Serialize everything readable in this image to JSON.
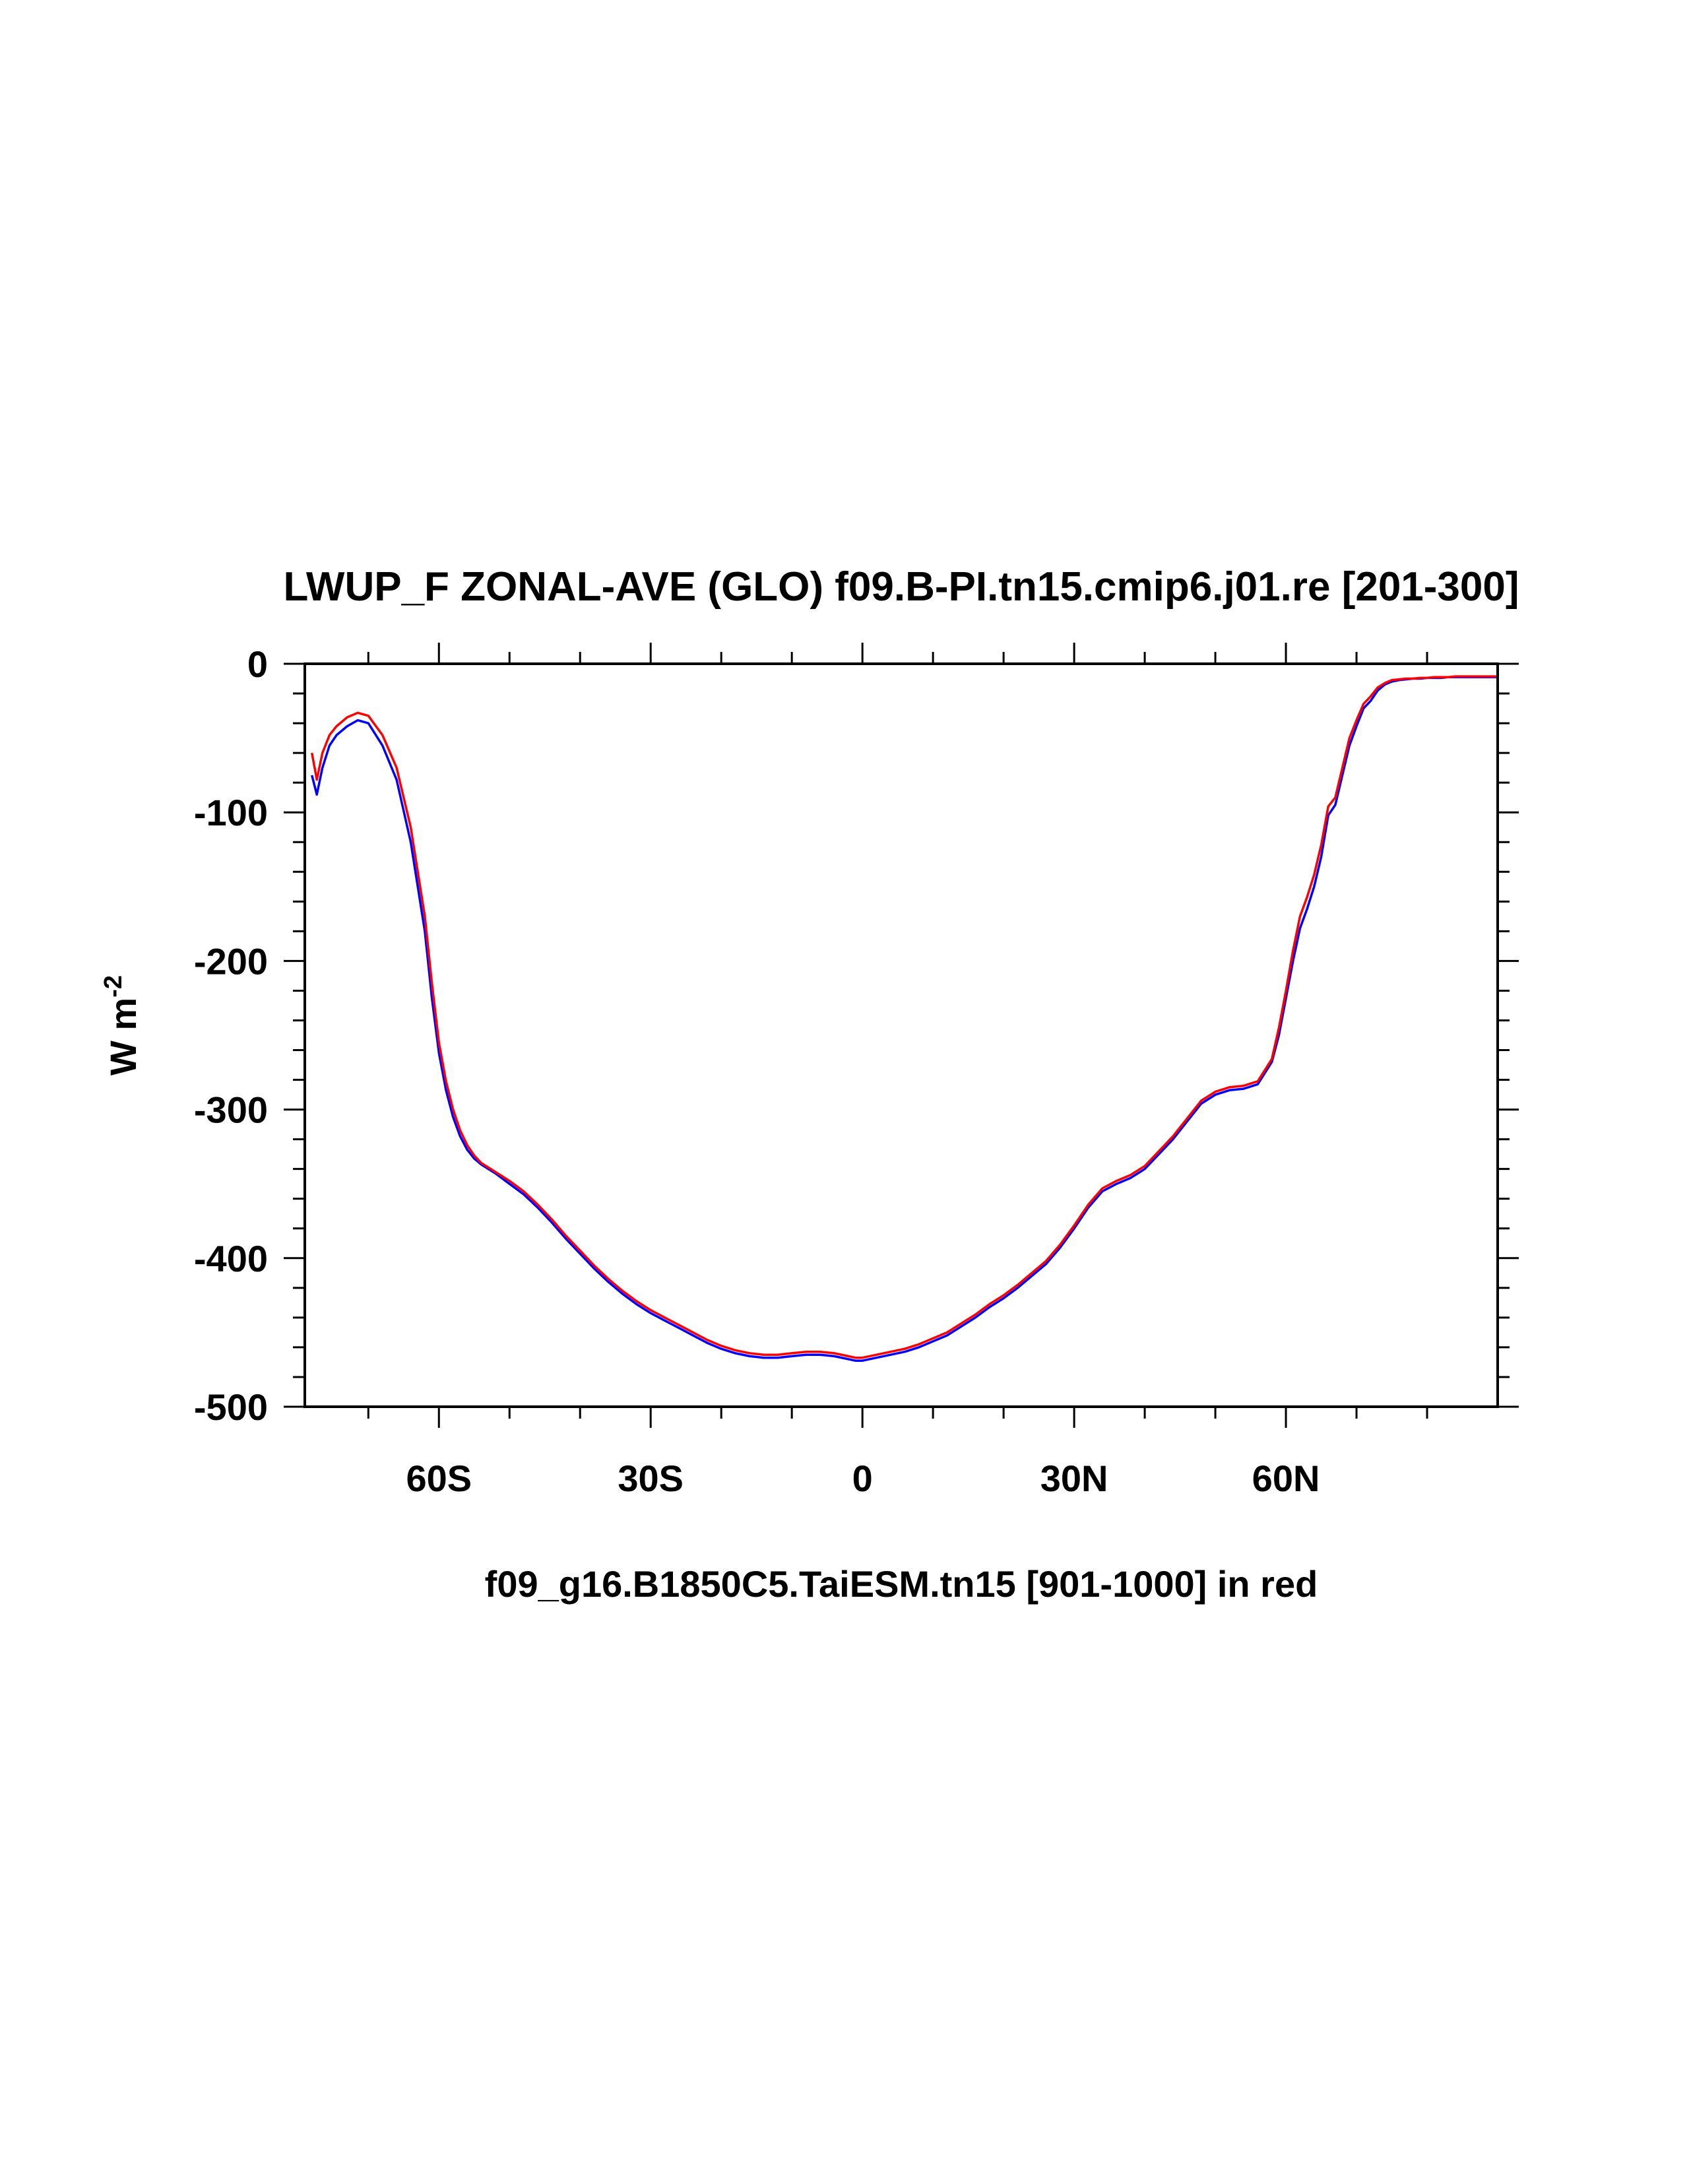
{
  "chart_data": {
    "type": "line",
    "title": "LWUP_F ZONAL-AVE (GLO) f09.B-PI.tn15.cmip6.j01.re [201-300]",
    "xlabel": "f09_g16.B1850C5.TaiESM.tn15 [901-1000] in red",
    "ylabel_base": "W m",
    "ylabel_sup": "-2",
    "xlim": [
      -79,
      90
    ],
    "ylim": [
      -500,
      0
    ],
    "xticks": [
      {
        "value": -60,
        "label": "60S"
      },
      {
        "value": -30,
        "label": "30S"
      },
      {
        "value": 0,
        "label": "0"
      },
      {
        "value": 30,
        "label": "30N"
      },
      {
        "value": 60,
        "label": "60N"
      }
    ],
    "yticks": [
      {
        "value": 0,
        "label": "0"
      },
      {
        "value": -100,
        "label": "-100"
      },
      {
        "value": -200,
        "label": "-200"
      },
      {
        "value": -300,
        "label": "-300"
      },
      {
        "value": -400,
        "label": "-400"
      },
      {
        "value": -500,
        "label": "-500"
      }
    ],
    "grid": false,
    "series": [
      {
        "color": "#0000ff",
        "x": [
          -78,
          -77.3,
          -76.5,
          -75.5,
          -74.5,
          -73,
          -71.5,
          -70,
          -68,
          -66,
          -64,
          -62,
          -61,
          -60,
          -59,
          -58,
          -57,
          -56,
          -55,
          -54,
          -53,
          -52,
          -50,
          -48,
          -46,
          -44,
          -42,
          -40,
          -38,
          -36,
          -34,
          -32,
          -30,
          -28,
          -26,
          -24,
          -22,
          -20,
          -18,
          -16,
          -14,
          -12,
          -10,
          -8,
          -6,
          -4,
          -2,
          -1,
          0,
          1,
          2,
          4,
          6,
          8,
          10,
          12,
          14,
          16,
          18,
          20,
          22,
          24,
          26,
          28,
          30,
          32,
          34,
          36,
          38,
          40,
          42,
          44,
          46,
          48,
          50,
          52,
          54,
          56,
          58,
          59,
          60,
          61,
          62,
          63,
          64,
          65,
          66,
          67,
          68,
          69,
          70,
          71,
          72,
          73,
          74,
          75,
          76,
          77,
          78,
          79,
          80,
          81,
          82,
          83,
          84,
          85,
          86,
          87,
          88,
          89,
          89.8
        ],
        "y": [
          -75,
          -88,
          -70,
          -55,
          -48,
          -42,
          -38,
          -40,
          -55,
          -78,
          -120,
          -180,
          -225,
          -262,
          -287,
          -305,
          -318,
          -327,
          -333,
          -337,
          -340,
          -343,
          -350,
          -357,
          -366,
          -376,
          -387,
          -397,
          -407,
          -416,
          -424,
          -431,
          -437,
          -442,
          -447,
          -452,
          -457,
          -461,
          -464,
          -466,
          -467,
          -467,
          -466,
          -465,
          -465,
          -466,
          -468,
          -469,
          -469,
          -468,
          -467,
          -465,
          -463,
          -460,
          -456,
          -452,
          -446,
          -440,
          -433,
          -427,
          -420,
          -412,
          -404,
          -393,
          -380,
          -366,
          -355,
          -350,
          -346,
          -340,
          -330,
          -320,
          -308,
          -296,
          -290,
          -287,
          -286,
          -283,
          -268,
          -250,
          -225,
          -200,
          -178,
          -165,
          -150,
          -130,
          -102,
          -95,
          -75,
          -55,
          -42,
          -30,
          -25,
          -18,
          -14,
          -12,
          -11,
          -10.5,
          -10,
          -10,
          -9.5,
          -9.5,
          -9.5,
          -9,
          -9,
          -9,
          -9,
          -9,
          -9,
          -9,
          -9
        ]
      },
      {
        "color": "#ff0000",
        "x": [
          -78,
          -77.3,
          -76.5,
          -75.5,
          -74.5,
          -73,
          -71.5,
          -70,
          -68,
          -66,
          -64,
          -62,
          -61,
          -60,
          -59,
          -58,
          -57,
          -56,
          -55,
          -54,
          -53,
          -52,
          -50,
          -48,
          -46,
          -44,
          -42,
          -40,
          -38,
          -36,
          -34,
          -32,
          -30,
          -28,
          -26,
          -24,
          -22,
          -20,
          -18,
          -16,
          -14,
          -12,
          -10,
          -8,
          -6,
          -4,
          -2,
          -1,
          0,
          1,
          2,
          4,
          6,
          8,
          10,
          12,
          14,
          16,
          18,
          20,
          22,
          24,
          26,
          28,
          30,
          32,
          34,
          36,
          38,
          40,
          42,
          44,
          46,
          48,
          50,
          52,
          54,
          56,
          58,
          59,
          60,
          61,
          62,
          63,
          64,
          65,
          66,
          67,
          68,
          69,
          70,
          71,
          72,
          73,
          74,
          75,
          76,
          77,
          78,
          79,
          80,
          81,
          82,
          83,
          84,
          85,
          86,
          87,
          88,
          89,
          89.8
        ],
        "y": [
          -60,
          -78,
          -60,
          -48,
          -42,
          -36,
          -33,
          -35,
          -48,
          -70,
          -110,
          -170,
          -215,
          -255,
          -281,
          -300,
          -314,
          -324,
          -331,
          -336,
          -339,
          -342,
          -348,
          -355,
          -364,
          -374,
          -385,
          -395,
          -405,
          -414,
          -422,
          -429,
          -435,
          -440,
          -445,
          -450,
          -455,
          -459,
          -462,
          -464,
          -465,
          -465,
          -464,
          -463,
          -463,
          -464,
          -466,
          -467,
          -467,
          -466,
          -465,
          -463,
          -461,
          -458,
          -454,
          -450,
          -444,
          -438,
          -431,
          -425,
          -418,
          -410,
          -402,
          -391,
          -378,
          -364,
          -353,
          -348,
          -344,
          -338,
          -328,
          -318,
          -306,
          -294,
          -288,
          -285,
          -284,
          -281,
          -266,
          -245,
          -220,
          -193,
          -170,
          -157,
          -142,
          -122,
          -96,
          -90,
          -70,
          -50,
          -38,
          -27,
          -22,
          -16,
          -13,
          -11,
          -10.5,
          -10,
          -10,
          -9.5,
          -9.5,
          -9,
          -9,
          -9,
          -8.5,
          -8.5,
          -8.5,
          -8.5,
          -8.5,
          -8.5,
          -8.5
        ]
      }
    ]
  }
}
